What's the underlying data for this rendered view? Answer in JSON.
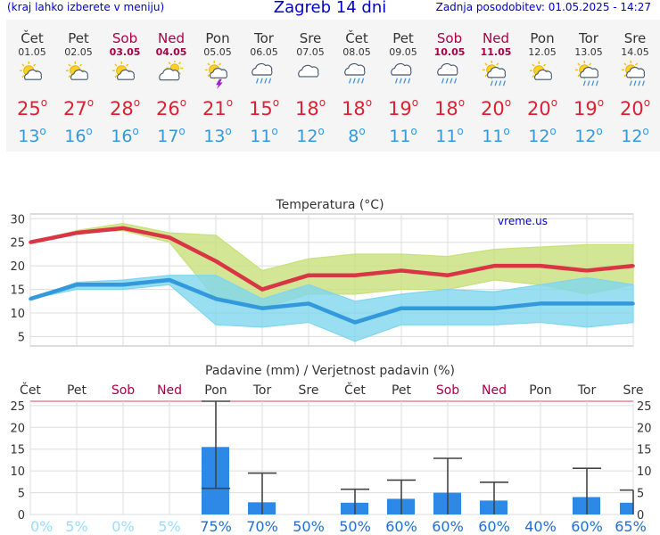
{
  "header": {
    "menu_hint": "(kraj lahko izberete v meniju)",
    "title": "Zagreb 14 dni",
    "updated": "Zadnja posodobitev: 01.05.2025 - 14:27"
  },
  "days": [
    {
      "name": "Čet",
      "date": "01.05",
      "weekend": false,
      "icon": "sun-cloud-icon",
      "max": "25",
      "min": "13"
    },
    {
      "name": "Pet",
      "date": "02.05",
      "weekend": false,
      "icon": "sun-cloud-icon",
      "max": "27",
      "min": "16"
    },
    {
      "name": "Sob",
      "date": "03.05",
      "weekend": true,
      "icon": "sun-cloud-icon",
      "max": "28",
      "min": "16"
    },
    {
      "name": "Ned",
      "date": "04.05",
      "weekend": true,
      "icon": "cloud-sun-icon",
      "max": "26",
      "min": "17"
    },
    {
      "name": "Pon",
      "date": "05.05",
      "weekend": false,
      "icon": "sun-thunder-icon",
      "max": "21",
      "min": "13"
    },
    {
      "name": "Tor",
      "date": "06.05",
      "weekend": false,
      "icon": "cloud-rain-icon",
      "max": "15",
      "min": "11"
    },
    {
      "name": "Sre",
      "date": "07.05",
      "weekend": false,
      "icon": "cloud-icon",
      "max": "18",
      "min": "12"
    },
    {
      "name": "Čet",
      "date": "08.05",
      "weekend": false,
      "icon": "cloud-rain-icon",
      "max": "18",
      "min": "8"
    },
    {
      "name": "Pet",
      "date": "09.05",
      "weekend": false,
      "icon": "cloud-rain-icon",
      "max": "19",
      "min": "11"
    },
    {
      "name": "Sob",
      "date": "10.05",
      "weekend": true,
      "icon": "cloud-rain-icon",
      "max": "18",
      "min": "11"
    },
    {
      "name": "Ned",
      "date": "11.05",
      "weekend": true,
      "icon": "sun-rain-icon",
      "max": "20",
      "min": "11"
    },
    {
      "name": "Pon",
      "date": "12.05",
      "weekend": false,
      "icon": "sun-cloud-icon",
      "max": "20",
      "min": "12"
    },
    {
      "name": "Tor",
      "date": "13.05",
      "weekend": false,
      "icon": "sun-rain-icon",
      "max": "19",
      "min": "12"
    },
    {
      "name": "Sre",
      "date": "14.05",
      "weekend": false,
      "icon": "sun-rain-icon",
      "max": "20",
      "min": "12"
    }
  ],
  "chart_data": [
    {
      "type": "line",
      "title": "Temperatura (°C)",
      "watermark": "vreme.us",
      "ylim": [
        3,
        31
      ],
      "yticks": [
        5,
        10,
        15,
        20,
        25,
        30
      ],
      "grid": true,
      "series": [
        {
          "name": "max",
          "color": "#d93645",
          "values": [
            25,
            27,
            28,
            26,
            21,
            15,
            18,
            18,
            19,
            18,
            20,
            20,
            19,
            20
          ]
        },
        {
          "name": "min",
          "color": "#3399dd",
          "values": [
            13,
            16,
            16,
            17,
            13,
            11,
            12,
            8,
            11,
            11,
            11,
            12,
            12,
            12
          ]
        }
      ],
      "bands": [
        {
          "color": "#c8e07a",
          "low": [
            25,
            27,
            27.5,
            25,
            13,
            11,
            14,
            14,
            15,
            15,
            17,
            16,
            14,
            16
          ],
          "high": [
            25,
            27.5,
            29,
            27,
            26.5,
            19,
            21.5,
            22.5,
            22.5,
            22,
            23.5,
            24,
            24.5,
            24.5
          ]
        },
        {
          "color": "#7fd6ee",
          "low": [
            13,
            15,
            15,
            16,
            7.5,
            7,
            8,
            4,
            7.5,
            7.5,
            7.5,
            8,
            7,
            8
          ],
          "high": [
            13,
            16.5,
            17,
            18,
            18,
            13,
            16,
            12.5,
            14,
            15,
            14.5,
            16,
            17.5,
            16
          ]
        }
      ]
    },
    {
      "type": "bar",
      "title": "Padavine (mm) / Verjetnost padavin (%)",
      "categories": [
        "Čet",
        "Pet",
        "Sob",
        "Ned",
        "Pon",
        "Tor",
        "Sre",
        "Čet",
        "Pet",
        "Sob",
        "Ned",
        "Pon",
        "Tor",
        "Sre"
      ],
      "weekend": [
        false,
        false,
        true,
        true,
        false,
        false,
        false,
        false,
        false,
        true,
        true,
        false,
        false,
        false
      ],
      "values": [
        0,
        0,
        0,
        0,
        15.5,
        2.8,
        0,
        2.7,
        3.6,
        5,
        3.2,
        0,
        4,
        2.7
      ],
      "error_low": [
        null,
        null,
        null,
        null,
        6,
        0,
        null,
        0,
        0,
        0,
        0,
        null,
        0,
        0
      ],
      "error_high": [
        null,
        null,
        null,
        null,
        26,
        9.5,
        null,
        5.8,
        7.9,
        12.9,
        7.4,
        null,
        10.6,
        5.6
      ],
      "probability": [
        "0%",
        "5%",
        "0%",
        "5%",
        "75%",
        "70%",
        "50%",
        "50%",
        "60%",
        "60%",
        "60%",
        "40%",
        "60%",
        "65%"
      ],
      "ylim": [
        0,
        26
      ],
      "yticks": [
        0,
        5,
        10,
        15,
        20,
        25
      ],
      "color": "#2d88e6"
    }
  ]
}
